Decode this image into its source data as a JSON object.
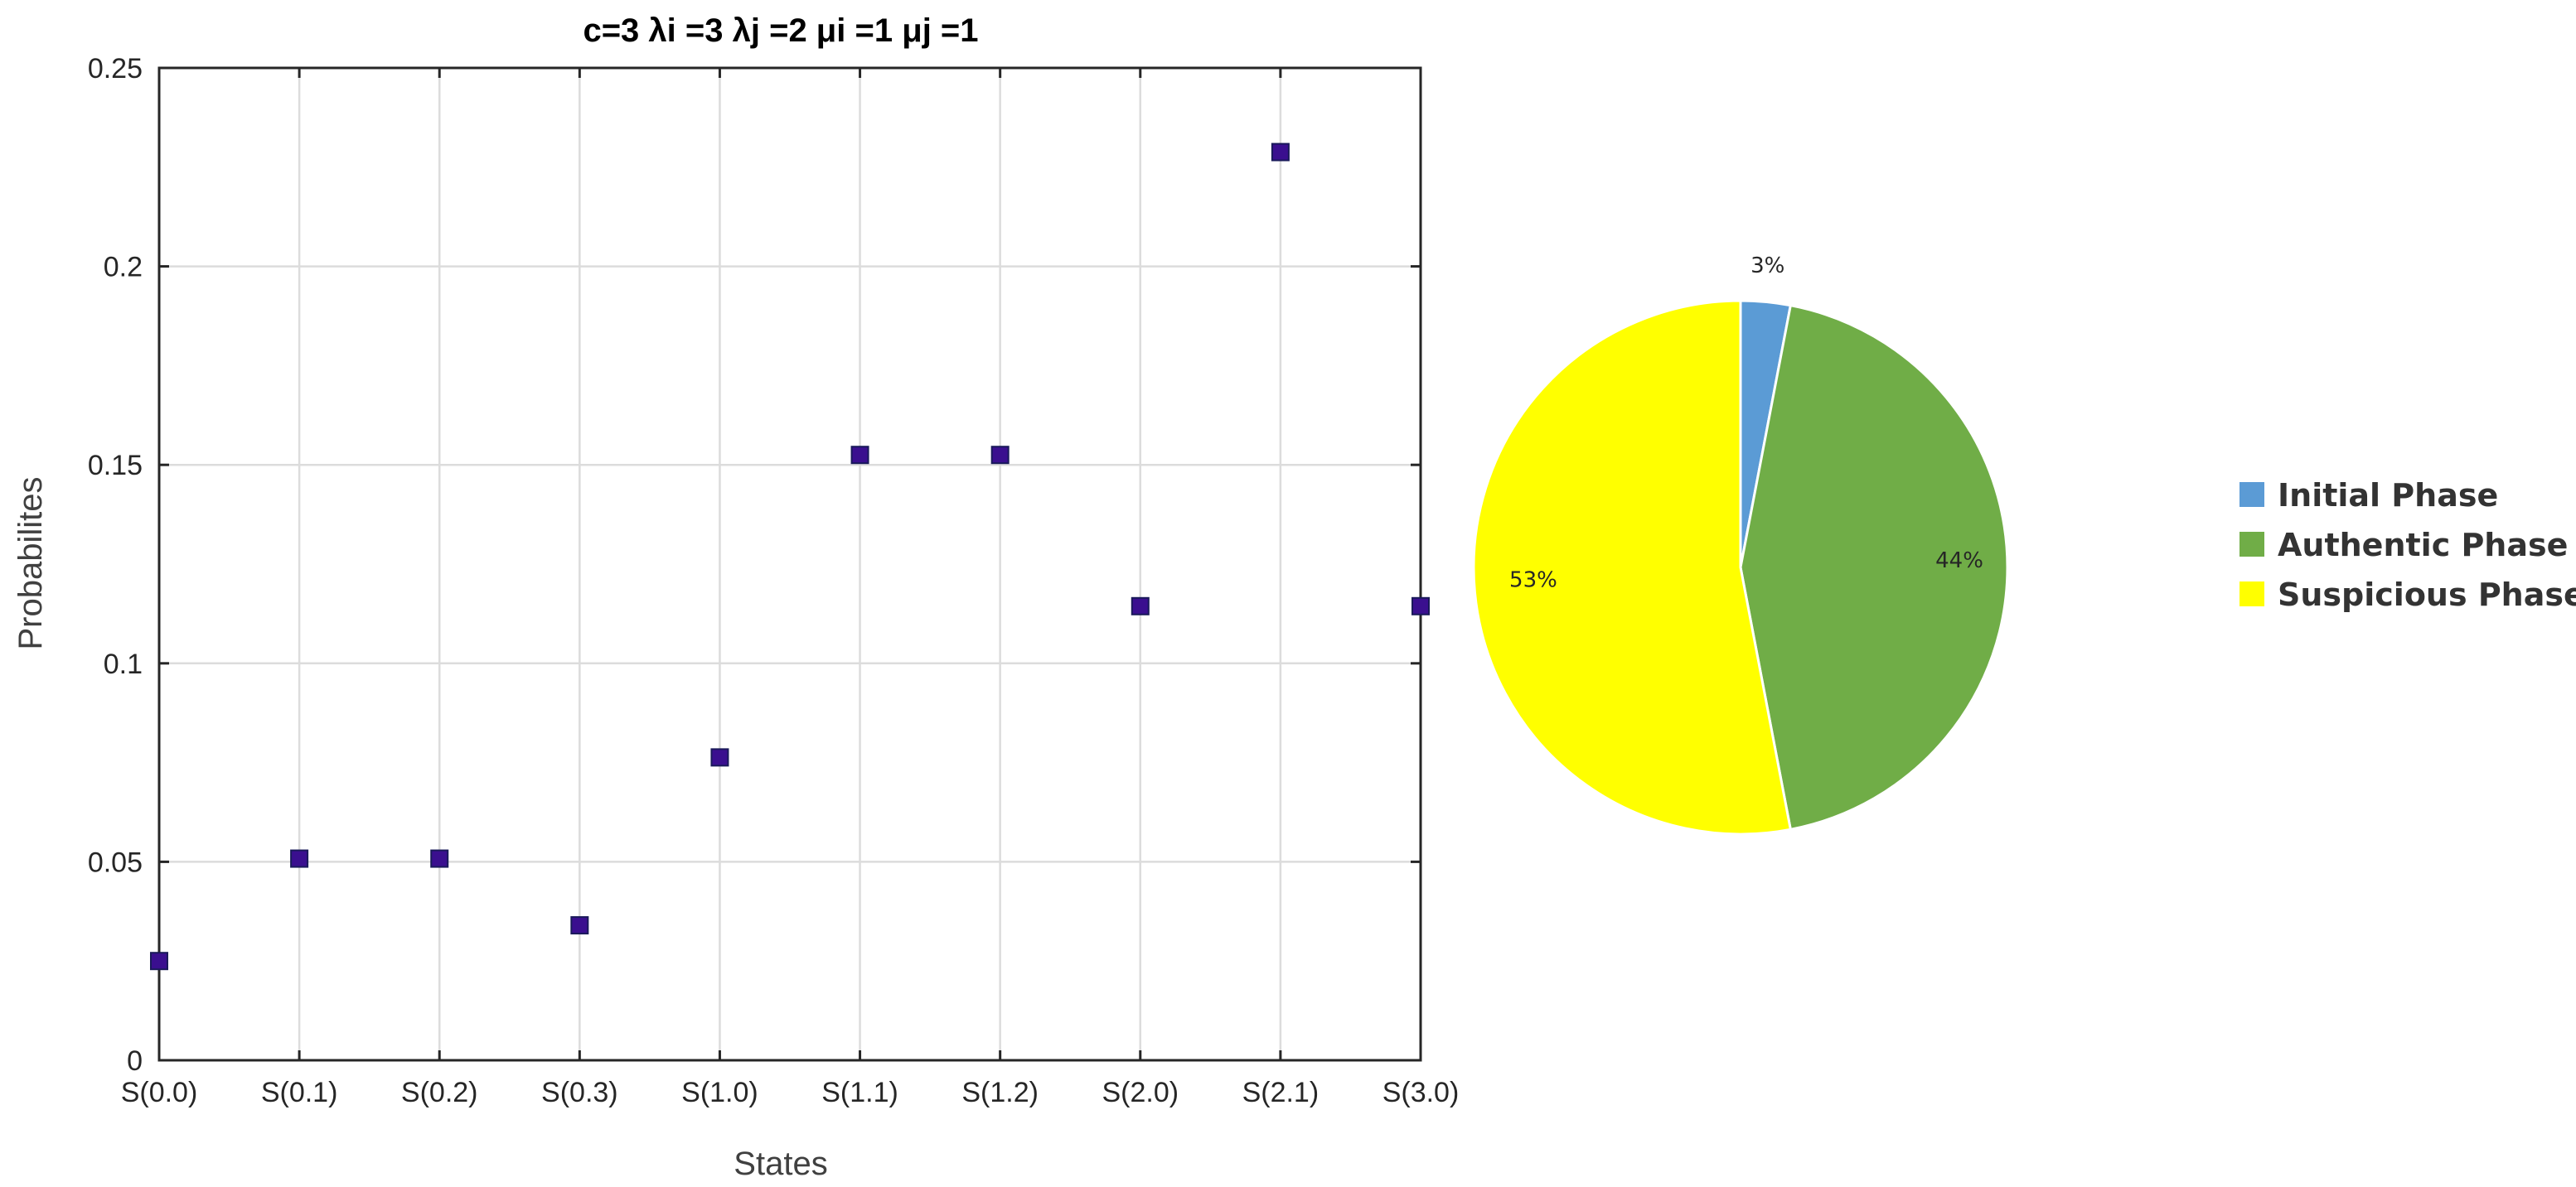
{
  "chart_data": [
    {
      "type": "scatter",
      "title": "c=3  λi =3  λj =2  μi =1  μj  =1",
      "xlabel": "States",
      "ylabel": "Probabilites",
      "categories": [
        "S(0.0)",
        "S(0.1)",
        "S(0.2)",
        "S(0.3)",
        "S(1.0)",
        "S(1.1)",
        "S(1.2)",
        "S(2.0)",
        "S(2.1)",
        "S(3.0)"
      ],
      "values": [
        0.025,
        0.0508,
        0.0508,
        0.034,
        0.0763,
        0.1525,
        0.1525,
        0.1144,
        0.2288,
        0.1144
      ],
      "ylim": [
        0,
        0.25
      ],
      "yticks": [
        "0",
        "0.05",
        "0.1",
        "0.15",
        "0.2",
        "0.25"
      ],
      "grid": true,
      "marker_color": "#3a0f8f"
    },
    {
      "type": "pie",
      "slices": [
        {
          "name": "Initial Phase",
          "value": 3,
          "label": "3%",
          "color": "#5b9bd5"
        },
        {
          "name": "Authentic Phase",
          "value": 44,
          "label": "44%",
          "color": "#70ad47"
        },
        {
          "name": "Suspicious Phase",
          "value": 53,
          "label": "53%",
          "color": "#ffff00"
        }
      ],
      "legend_position": "right"
    }
  ]
}
